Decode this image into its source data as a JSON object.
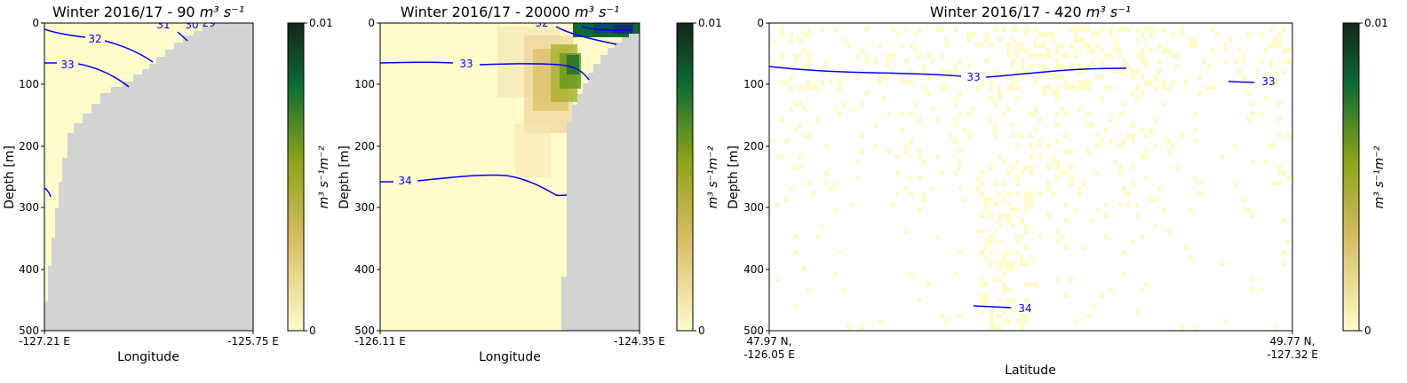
{
  "colormap": {
    "low": "#fffbca",
    "mid1": "#d8bd62",
    "mid2": "#8ea418",
    "mid3": "#0c6b34",
    "high": "#132618"
  },
  "colors": {
    "land": "#d3d3d3",
    "contour": "#0000ff",
    "water": "#fffbca"
  },
  "chart_data": [
    {
      "type": "heatmap",
      "title_prefix": "Winter 2016/17 - 90 ",
      "title_units": "m³ s⁻¹",
      "xlabel": "Longitude",
      "ylabel": "Depth [m]",
      "x_ticks": [
        "-127.21 E",
        "-125.75 E"
      ],
      "y_ticks": [
        "0",
        "100",
        "200",
        "300",
        "400",
        "500"
      ],
      "ylim": [
        0,
        500
      ],
      "colorbar": {
        "label": "m³ s⁻¹m⁻²",
        "ticks": [
          "0.01",
          "0"
        ],
        "range": [
          0,
          0.01
        ]
      },
      "contour_labels": [
        "32",
        "33",
        "31",
        "30",
        "29"
      ]
    },
    {
      "type": "heatmap",
      "title_prefix": "Winter 2016/17 - 20000 ",
      "title_units": "m³ s⁻¹",
      "xlabel": "Longitude",
      "ylabel": "Depth [m]",
      "x_ticks": [
        "-126.11 E",
        "-124.35 E"
      ],
      "y_ticks": [
        "0",
        "100",
        "200",
        "300",
        "400",
        "500"
      ],
      "ylim": [
        0,
        500
      ],
      "colorbar": {
        "label": "m³ s⁻¹m⁻²",
        "ticks": [
          "0.01",
          "0"
        ],
        "range": [
          0,
          0.01
        ]
      },
      "contour_labels": [
        "32",
        "33",
        "34"
      ]
    },
    {
      "type": "heatmap",
      "title_prefix": "Winter 2016/17 - 420 ",
      "title_units": "m³ s⁻¹",
      "xlabel": "Latitude",
      "ylabel": "Depth [m]",
      "x_ticks": [
        [
          "47.97 N,",
          "-126.05 E"
        ],
        [
          "49.77 N,",
          "-127.32 E"
        ]
      ],
      "y_ticks": [
        "0",
        "100",
        "200",
        "300",
        "400",
        "500"
      ],
      "ylim": [
        0,
        500
      ],
      "colorbar": {
        "label": "m³ s⁻¹m⁻²",
        "ticks": [
          "0.01",
          "0"
        ],
        "range": [
          0,
          0.01
        ]
      },
      "contour_labels": [
        "33",
        "33",
        "34"
      ]
    }
  ]
}
